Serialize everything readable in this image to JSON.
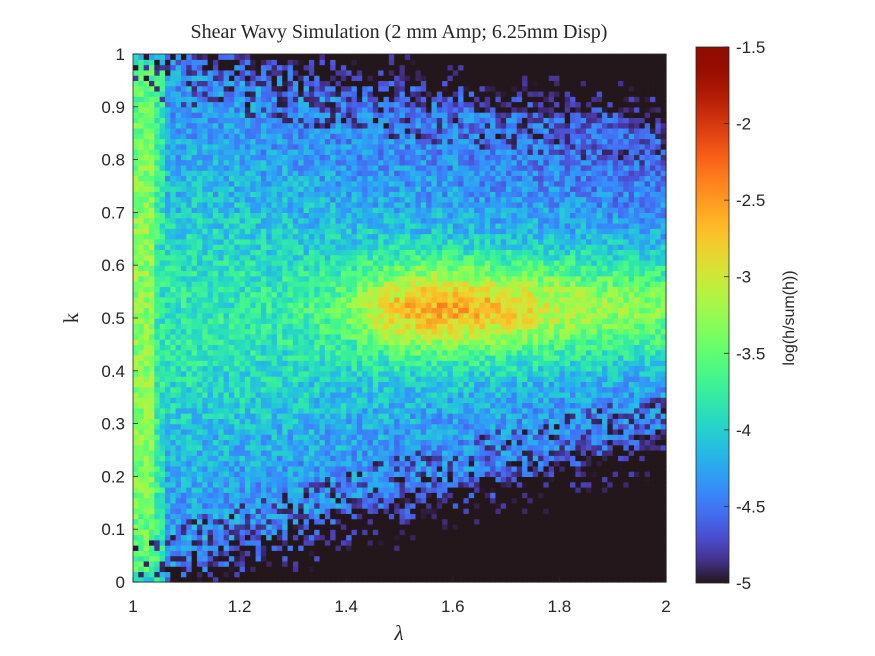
{
  "chart_data": {
    "type": "heatmap",
    "title": "Shear Wavy Simulation (2 mm Amp; 6.25mm Disp)",
    "xlabel": "λ",
    "ylabel": "k",
    "xlim": [
      1,
      2
    ],
    "ylim": [
      0,
      1
    ],
    "x_ticks": [
      "1",
      "1.2",
      "1.4",
      "1.6",
      "1.8",
      "2"
    ],
    "y_ticks": [
      "0",
      "0.1",
      "0.2",
      "0.3",
      "0.4",
      "0.5",
      "0.6",
      "0.7",
      "0.8",
      "0.9",
      "1"
    ],
    "colorbar": {
      "label": "log(h/sum(h))",
      "range": [
        -5,
        -1.5
      ],
      "ticks": [
        "-1.5",
        "-2",
        "-2.5",
        "-3",
        "-3.5",
        "-4",
        "-4.5",
        "-5"
      ],
      "colormap": "turbo"
    },
    "grid": {
      "nx": 100,
      "ny": 100
    },
    "features": [
      {
        "name": "left ridge",
        "lambda": 1.02,
        "k_range": [
          0.02,
          1.0
        ],
        "peak_value": -3.3
      },
      {
        "name": "right plateau",
        "lambda_range": [
          1.45,
          2.0
        ],
        "k_center": 0.52,
        "peak_value": -2.9
      },
      {
        "name": "fan envelope",
        "k_min_at_lambda_1": 0.0,
        "k_max_at_lambda_1": 1.0,
        "k_min_at_lambda_2": 0.3,
        "k_max_at_lambda_2": 0.85
      }
    ],
    "background_value": -5
  }
}
